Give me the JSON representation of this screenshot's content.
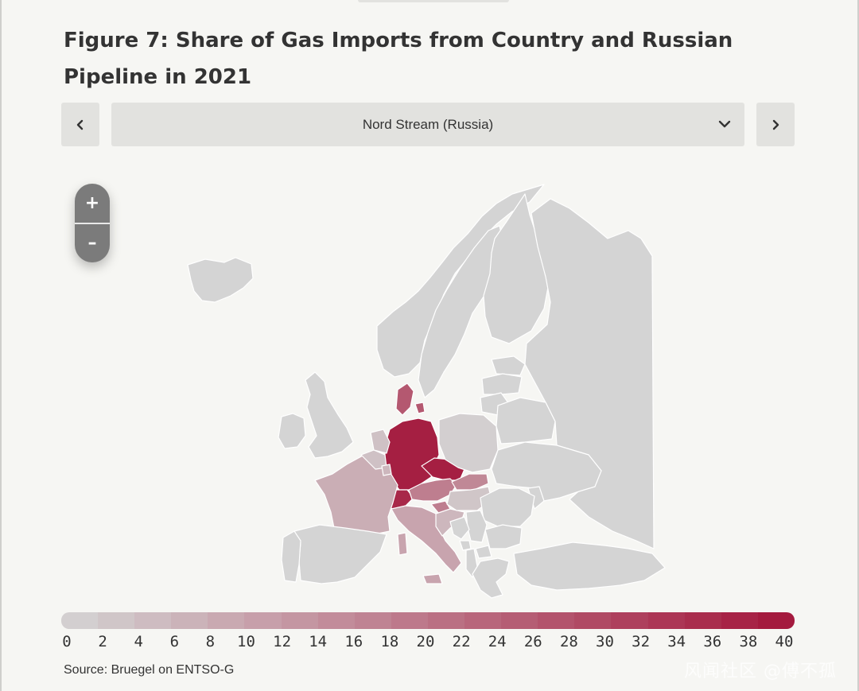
{
  "title": "Figure 7: Share of Gas Imports from Country and Russian Pipeline in 2021",
  "selector": {
    "selected": "Nord Stream (Russia)"
  },
  "nav": {
    "prev_icon": "chevron-left-icon",
    "next_icon": "chevron-right-icon",
    "dropdown_icon": "chevron-down-icon"
  },
  "zoom": {
    "in_label": "+",
    "out_label": "–"
  },
  "legend": {
    "labels": [
      "0",
      "2",
      "4",
      "6",
      "8",
      "10",
      "12",
      "14",
      "16",
      "18",
      "20",
      "22",
      "24",
      "26",
      "28",
      "30",
      "32",
      "34",
      "36",
      "38",
      "40"
    ],
    "min": 0,
    "max": 40,
    "color_low": "#d4d4d4",
    "color_high": "#a3153a"
  },
  "source": "Source: Bruegel on ENTSO-G",
  "watermark": "风闻社区 @傅不孤",
  "chart_data": {
    "type": "choropleth",
    "title": "Figure 7: Share of Gas Imports from Country and Russian Pipeline in 2021",
    "series_selected": "Nord Stream (Russia)",
    "scale": {
      "min": 0,
      "max": 40,
      "unit": ""
    },
    "regions": [
      {
        "name": "Germany",
        "value": 38
      },
      {
        "name": "Czechia",
        "value": 38
      },
      {
        "name": "Switzerland",
        "value": 36
      },
      {
        "name": "Denmark",
        "value": 26
      },
      {
        "name": "Austria",
        "value": 18
      },
      {
        "name": "Slovakia",
        "value": 16
      },
      {
        "name": "Slovenia",
        "value": 18
      },
      {
        "name": "Italy",
        "value": 10
      },
      {
        "name": "France",
        "value": 8
      },
      {
        "name": "Belgium",
        "value": 4
      },
      {
        "name": "Netherlands",
        "value": 4
      },
      {
        "name": "Luxembourg",
        "value": 6
      },
      {
        "name": "Croatia",
        "value": 6
      },
      {
        "name": "Hungary",
        "value": 3
      },
      {
        "name": "Poland",
        "value": 1
      },
      {
        "name": "United Kingdom",
        "value": 0
      },
      {
        "name": "Ireland",
        "value": 0
      },
      {
        "name": "Spain",
        "value": 0
      },
      {
        "name": "Portugal",
        "value": 0
      },
      {
        "name": "Norway",
        "value": 0
      },
      {
        "name": "Sweden",
        "value": 0
      },
      {
        "name": "Finland",
        "value": 0
      },
      {
        "name": "Iceland",
        "value": 0
      },
      {
        "name": "Russia",
        "value": 0
      },
      {
        "name": "Estonia",
        "value": 0
      },
      {
        "name": "Latvia",
        "value": 0
      },
      {
        "name": "Lithuania",
        "value": 0
      },
      {
        "name": "Belarus",
        "value": 0
      },
      {
        "name": "Ukraine",
        "value": 0
      },
      {
        "name": "Moldova",
        "value": 0
      },
      {
        "name": "Romania",
        "value": 0
      },
      {
        "name": "Bulgaria",
        "value": 0
      },
      {
        "name": "Serbia",
        "value": 0
      },
      {
        "name": "Bosnia and Herzegovina",
        "value": 0
      },
      {
        "name": "Montenegro",
        "value": 0
      },
      {
        "name": "Albania",
        "value": 0
      },
      {
        "name": "North Macedonia",
        "value": 0
      },
      {
        "name": "Greece",
        "value": 0
      },
      {
        "name": "Turkey",
        "value": 0
      }
    ]
  }
}
